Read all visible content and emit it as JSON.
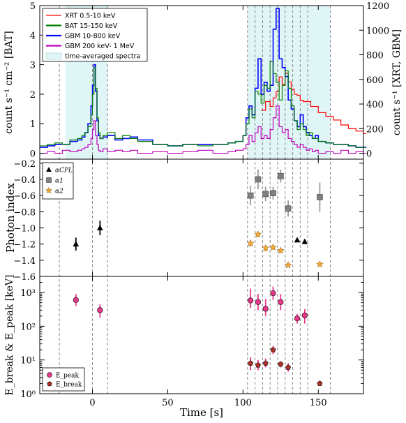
{
  "chart_data": [
    {
      "type": "line",
      "panel": "top",
      "ylabel_left": "count s⁻¹ cm⁻² [BAT]",
      "ylabel_right": "count s⁻¹ [XRT, GBM]",
      "xlim": [
        -35,
        180
      ],
      "ylim_left": [
        -0.2,
        5
      ],
      "ylim_right": [
        -48,
        1200
      ],
      "yticks_left": [
        0,
        1,
        2,
        3,
        4,
        5
      ],
      "yticks_right": [
        0,
        200,
        400,
        600,
        800,
        1000,
        1200
      ],
      "grid": false,
      "legend_position": "top-left",
      "legend": [
        {
          "label": "XRT 0.5-10 keV",
          "color": "#ff0000"
        },
        {
          "label": "BAT 15-150 keV",
          "color": "#008000"
        },
        {
          "label": "GBM 10-800 keV",
          "color": "#0000ff"
        },
        {
          "label": "GBM 200 keV- 1 MeV",
          "color": "#bf00bf"
        },
        {
          "label": "time-averaged spectra",
          "color": "#e0f5f5"
        }
      ],
      "shaded_intervals": [
        [
          -18,
          10
        ],
        [
          103,
          158
        ]
      ],
      "series": [
        {
          "name": "BAT 15-150 keV",
          "axis": "left",
          "color": "#008000",
          "x": [
            -35,
            -30,
            -25,
            -20,
            -15,
            -10,
            -7,
            -5,
            -3,
            -1,
            0,
            1,
            2,
            3,
            4,
            5,
            7,
            10,
            15,
            20,
            25,
            30,
            40,
            50,
            60,
            70,
            80,
            90,
            95,
            100,
            102,
            104,
            106,
            108,
            110,
            112,
            114,
            116,
            118,
            120,
            122,
            124,
            126,
            128,
            130,
            132,
            134,
            136,
            138,
            140,
            142,
            144,
            146,
            148,
            150,
            155,
            160,
            165,
            170,
            175,
            180
          ],
          "values": [
            0.25,
            0.3,
            0.35,
            0.3,
            0.45,
            0.5,
            0.6,
            0.7,
            0.9,
            1.3,
            2.0,
            2.9,
            2.2,
            1.2,
            0.7,
            0.5,
            0.6,
            0.7,
            0.5,
            0.6,
            0.5,
            0.4,
            0.3,
            0.25,
            0.3,
            0.25,
            0.3,
            0.35,
            0.4,
            0.6,
            1.0,
            1.5,
            1.2,
            2.1,
            2.0,
            1.7,
            2.3,
            2.2,
            3.1,
            2.7,
            2.4,
            1.8,
            2.3,
            2.8,
            2.2,
            1.6,
            1.1,
            0.8,
            1.0,
            0.8,
            0.6,
            0.7,
            0.5,
            0.5,
            0.4,
            0.35,
            0.3,
            0.3,
            0.25,
            0.2,
            0.2
          ]
        },
        {
          "name": "GBM 10-800 keV",
          "axis": "left",
          "color": "#0000ff",
          "x": [
            -35,
            -30,
            -25,
            -20,
            -15,
            -10,
            -7,
            -5,
            -3,
            -1,
            0,
            1,
            2,
            3,
            4,
            5,
            7,
            10,
            15,
            20,
            25,
            30,
            40,
            50,
            60,
            70,
            80,
            90,
            95,
            100,
            102,
            104,
            106,
            108,
            110,
            112,
            114,
            116,
            118,
            120,
            122,
            124,
            126,
            128,
            130,
            132,
            134,
            136,
            138,
            140,
            142,
            144,
            146,
            148,
            150,
            155,
            160,
            165,
            170,
            175,
            180
          ],
          "values": [
            0.2,
            0.25,
            0.3,
            0.3,
            0.4,
            0.45,
            0.55,
            0.7,
            1.0,
            1.6,
            2.3,
            3.0,
            2.1,
            1.1,
            0.6,
            0.5,
            0.55,
            0.6,
            0.45,
            0.5,
            0.55,
            0.45,
            0.3,
            0.25,
            0.3,
            0.3,
            0.3,
            0.35,
            0.4,
            0.6,
            1.2,
            1.6,
            1.3,
            2.2,
            3.2,
            2.0,
            2.4,
            2.1,
            2.3,
            4.2,
            4.9,
            3.2,
            2.9,
            2.6,
            1.8,
            1.5,
            1.1,
            0.9,
            1.3,
            0.9,
            0.7,
            0.6,
            0.5,
            0.6,
            0.4,
            0.35,
            0.3,
            0.3,
            0.25,
            0.2,
            0.2
          ]
        },
        {
          "name": "GBM 200 keV- 1 MeV",
          "axis": "left",
          "color": "#bf00bf",
          "x": [
            -35,
            -30,
            -25,
            -20,
            -15,
            -10,
            -7,
            -5,
            -3,
            -1,
            0,
            1,
            2,
            3,
            4,
            5,
            7,
            10,
            15,
            20,
            25,
            30,
            40,
            50,
            60,
            70,
            80,
            90,
            95,
            100,
            102,
            104,
            106,
            108,
            110,
            112,
            114,
            116,
            118,
            120,
            122,
            124,
            126,
            128,
            130,
            132,
            134,
            136,
            138,
            140,
            142,
            144,
            146,
            148,
            150,
            155,
            160,
            165,
            170,
            175,
            180
          ],
          "values": [
            0.0,
            0.05,
            0.0,
            0.1,
            0.05,
            0.1,
            0.15,
            0.2,
            0.3,
            0.5,
            0.8,
            1.1,
            0.6,
            0.3,
            0.1,
            0.05,
            0.15,
            0.05,
            0.1,
            0.05,
            0.1,
            0.0,
            0.05,
            0.0,
            0.05,
            0.1,
            0.0,
            0.05,
            0.1,
            0.15,
            0.3,
            0.6,
            0.4,
            0.7,
            0.9,
            0.5,
            0.6,
            0.5,
            0.8,
            1.2,
            1.6,
            0.9,
            0.7,
            0.8,
            0.5,
            0.4,
            0.3,
            0.2,
            0.3,
            0.2,
            0.1,
            0.15,
            0.05,
            0.1,
            0.0,
            0.05,
            0.0,
            0.1,
            0.0,
            0.05,
            0.0
          ]
        },
        {
          "name": "XRT 0.5-10 keV",
          "axis": "right",
          "color": "#ff0000",
          "x": [
            112,
            115,
            118,
            120,
            122,
            124,
            126,
            128,
            130,
            132,
            134,
            136,
            138,
            140,
            145,
            150,
            155,
            160,
            165,
            170,
            175,
            180
          ],
          "values": [
            350,
            420,
            380,
            450,
            500,
            620,
            560,
            650,
            580,
            520,
            480,
            470,
            430,
            420,
            380,
            330,
            300,
            270,
            230,
            200,
            180,
            160
          ]
        }
      ]
    },
    {
      "type": "scatter",
      "panel": "middle",
      "ylabel": "Photon index",
      "ylim": [
        -1.6,
        -0.15
      ],
      "yticks": [
        -1.6,
        -1.4,
        -1.2,
        -1.0,
        -0.8,
        -0.6,
        -0.4,
        -0.2
      ],
      "legend_position": "top-left",
      "legend": [
        {
          "label": "αCPL",
          "color": "#000000",
          "marker": "triangle"
        },
        {
          "label": "α1",
          "color": "#808080",
          "marker": "square"
        },
        {
          "label": "α2",
          "color": "#f4a83a",
          "marker": "star"
        }
      ],
      "series": [
        {
          "name": "αCPL",
          "color": "#000000",
          "x": [
            -11,
            5,
            136,
            141
          ],
          "values": [
            -1.2,
            -1.0,
            -1.15,
            -1.17
          ],
          "err": [
            0.08,
            0.09,
            0.02,
            0.03
          ]
        },
        {
          "name": "α1",
          "color": "#808080",
          "x": [
            105,
            110,
            115,
            120,
            125,
            130,
            151
          ],
          "values": [
            -0.6,
            -0.4,
            -0.58,
            -0.57,
            -0.36,
            -0.76,
            -0.62
          ],
          "err": [
            0.12,
            0.12,
            0.09,
            0.08,
            0.08,
            0.1,
            0.18
          ]
        },
        {
          "name": "α2",
          "color": "#f4a83a",
          "x": [
            105,
            110,
            115,
            120,
            125,
            130,
            151
          ],
          "values": [
            -1.19,
            -1.08,
            -1.25,
            -1.24,
            -1.28,
            -1.46,
            -1.45
          ],
          "err": [
            0.04,
            0.03,
            0.04,
            0.03,
            0.03,
            0.02,
            0.01
          ]
        }
      ]
    },
    {
      "type": "scatter",
      "panel": "bottom",
      "ylabel": "E_break & E_peak [keV]",
      "xlabel": "Time [s]",
      "yscale": "log",
      "ylim": [
        1,
        3000
      ],
      "yticks": [
        1,
        10,
        100,
        1000
      ],
      "ytick_labels": [
        "10⁰",
        "10¹",
        "10²",
        "10³"
      ],
      "xticks": [
        0,
        50,
        100,
        150
      ],
      "legend_position": "bottom-left",
      "legend": [
        {
          "label": "E_peak",
          "color": "#e8388a",
          "marker": "circle"
        },
        {
          "label": "E_break",
          "color": "#b03028",
          "marker": "pentagon"
        }
      ],
      "series": [
        {
          "name": "E_peak",
          "color": "#e8388a",
          "errcolor": "#e8388a",
          "x": [
            -11,
            5,
            105,
            110,
            115,
            120,
            125,
            136,
            141
          ],
          "values": [
            600,
            300,
            580,
            520,
            330,
            950,
            520,
            170,
            210
          ],
          "errlo": [
            400,
            180,
            350,
            300,
            200,
            600,
            300,
            120,
            120
          ],
          "errhi": [
            900,
            450,
            1300,
            900,
            650,
            1500,
            900,
            230,
            320
          ]
        },
        {
          "name": "E_break",
          "color": "#b03028",
          "errcolor": "#e8388a",
          "x": [
            105,
            110,
            115,
            120,
            125,
            130,
            151
          ],
          "values": [
            8,
            7,
            8,
            20,
            7.5,
            6,
            2
          ],
          "errlo": [
            5,
            5,
            6,
            15,
            6,
            4.5,
            1.9
          ],
          "errhi": [
            12,
            10,
            11,
            26,
            9,
            8,
            2.1
          ]
        }
      ]
    }
  ],
  "vlines": [
    -22,
    0,
    10,
    103,
    108,
    113,
    118,
    123,
    128,
    133,
    138,
    143,
    158
  ]
}
